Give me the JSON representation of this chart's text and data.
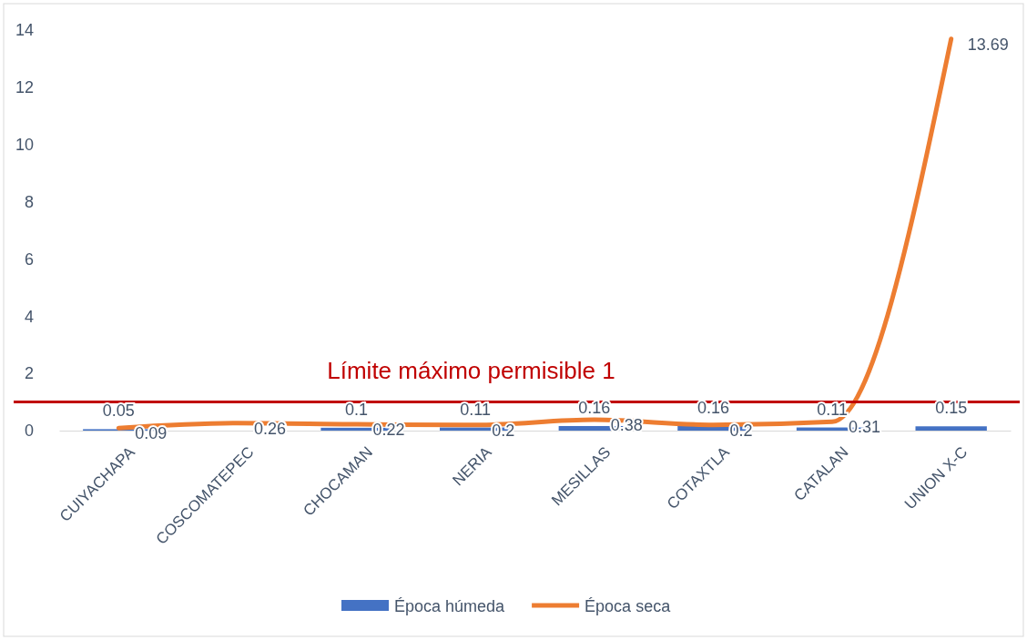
{
  "chart_data": {
    "type": "bar",
    "categories": [
      "CUIYACHAPA",
      "COSCOMATEPEC",
      "CHOCAMAN",
      "NERIA",
      "MESILLAS",
      "COTAXTLA",
      "CATALAN",
      "UNION X-C"
    ],
    "series": [
      {
        "name": "Época húmeda",
        "color": "#4472c4",
        "values": [
          0.05,
          null,
          0.1,
          0.11,
          0.16,
          0.16,
          0.11,
          0.15
        ]
      },
      {
        "name": "Época seca",
        "type": "line",
        "color": "#ed7d31",
        "values": [
          0.09,
          0.26,
          0.22,
          0.2,
          0.38,
          0.2,
          0.31,
          13.69
        ]
      }
    ],
    "ylim": [
      0,
      14
    ],
    "yticks": [
      0,
      2,
      4,
      6,
      8,
      10,
      12,
      14
    ],
    "grid": false,
    "legend": "bottom",
    "data_labels": true,
    "ref_lines": [
      {
        "axis": "y",
        "value": 1,
        "label": "Límite máximo permisible 1",
        "color": "#c00000"
      }
    ]
  }
}
